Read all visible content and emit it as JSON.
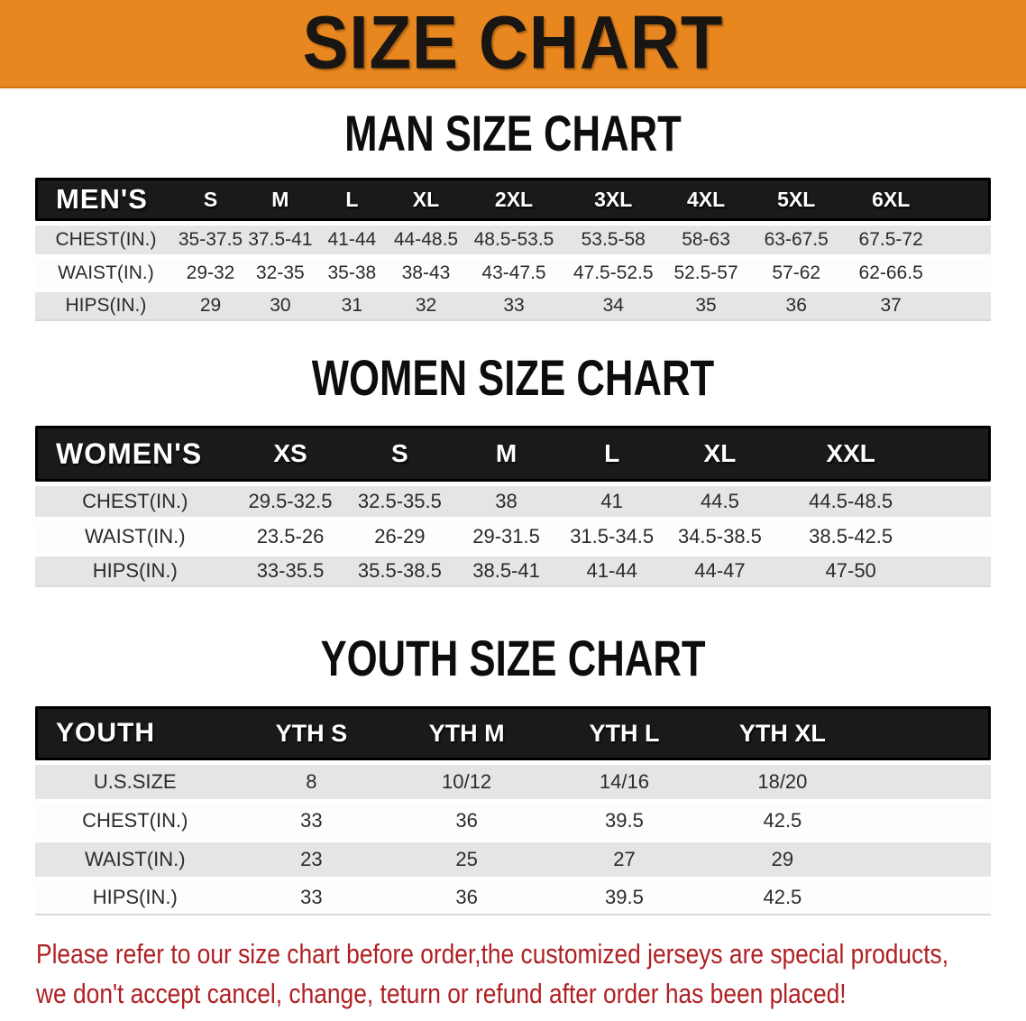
{
  "banner": {
    "label": "SIZE CHART"
  },
  "sections": [
    {
      "heading": "MAN SIZE CHART",
      "group_label": "MEN'S",
      "columns": [
        "S",
        "M",
        "L",
        "XL",
        "2XL",
        "3XL",
        "4XL",
        "5XL",
        "6XL"
      ],
      "rows": [
        {
          "label": "CHEST(IN.)",
          "values": [
            "35-37.5",
            "37.5-41",
            "41-44",
            "44-48.5",
            "48.5-53.5",
            "53.5-58",
            "58-63",
            "63-67.5",
            "67.5-72"
          ]
        },
        {
          "label": "WAIST(IN.)",
          "values": [
            "29-32",
            "32-35",
            "35-38",
            "38-43",
            "43-47.5",
            "47.5-52.5",
            "52.5-57",
            "57-62",
            "62-66.5"
          ]
        },
        {
          "label": "HIPS(IN.)",
          "values": [
            "29",
            "30",
            "31",
            "32",
            "33",
            "34",
            "35",
            "36",
            "37"
          ]
        }
      ]
    },
    {
      "heading": "WOMEN SIZE CHART",
      "group_label": "WOMEN'S",
      "columns": [
        "XS",
        "S",
        "M",
        "L",
        "XL",
        "XXL"
      ],
      "rows": [
        {
          "label": "CHEST(IN.)",
          "values": [
            "29.5-32.5",
            "32.5-35.5",
            "38",
            "41",
            "44.5",
            "44.5-48.5"
          ]
        },
        {
          "label": "WAIST(IN.)",
          "values": [
            "23.5-26",
            "26-29",
            "29-31.5",
            "31.5-34.5",
            "34.5-38.5",
            "38.5-42.5"
          ]
        },
        {
          "label": "HIPS(IN.)",
          "values": [
            "33-35.5",
            "35.5-38.5",
            "38.5-41",
            "41-44",
            "44-47",
            "47-50"
          ]
        }
      ]
    },
    {
      "heading": "YOUTH SIZE CHART",
      "group_label": "YOUTH",
      "columns": [
        "YTH S",
        "YTH M",
        "YTH L",
        "YTH XL"
      ],
      "rows": [
        {
          "label": "U.S.SIZE",
          "values": [
            "8",
            "10/12",
            "14/16",
            "18/20"
          ]
        },
        {
          "label": "CHEST(IN.)",
          "values": [
            "33",
            "36",
            "39.5",
            "42.5"
          ]
        },
        {
          "label": "WAIST(IN.)",
          "values": [
            "23",
            "25",
            "27",
            "29"
          ]
        },
        {
          "label": "HIPS(IN.)",
          "values": [
            "33",
            "36",
            "39.5",
            "42.5"
          ]
        }
      ]
    }
  ],
  "footer": {
    "line1": "Please refer to our size chart before order,the customized jerseys are special products,",
    "line2": "we don't accept cancel, change, teturn or refund after order has been placed!"
  },
  "colors": {
    "banner_bg": "#e8871f",
    "banner_text": "#181512",
    "table_header_bg": "#1a1a1a",
    "table_header_text": "#ffffff",
    "row_stripe": "#e5e5e6",
    "row_plain": "#fdfdfd",
    "body_text": "#2b2b2b",
    "disclaimer_text": "#b01f23"
  }
}
